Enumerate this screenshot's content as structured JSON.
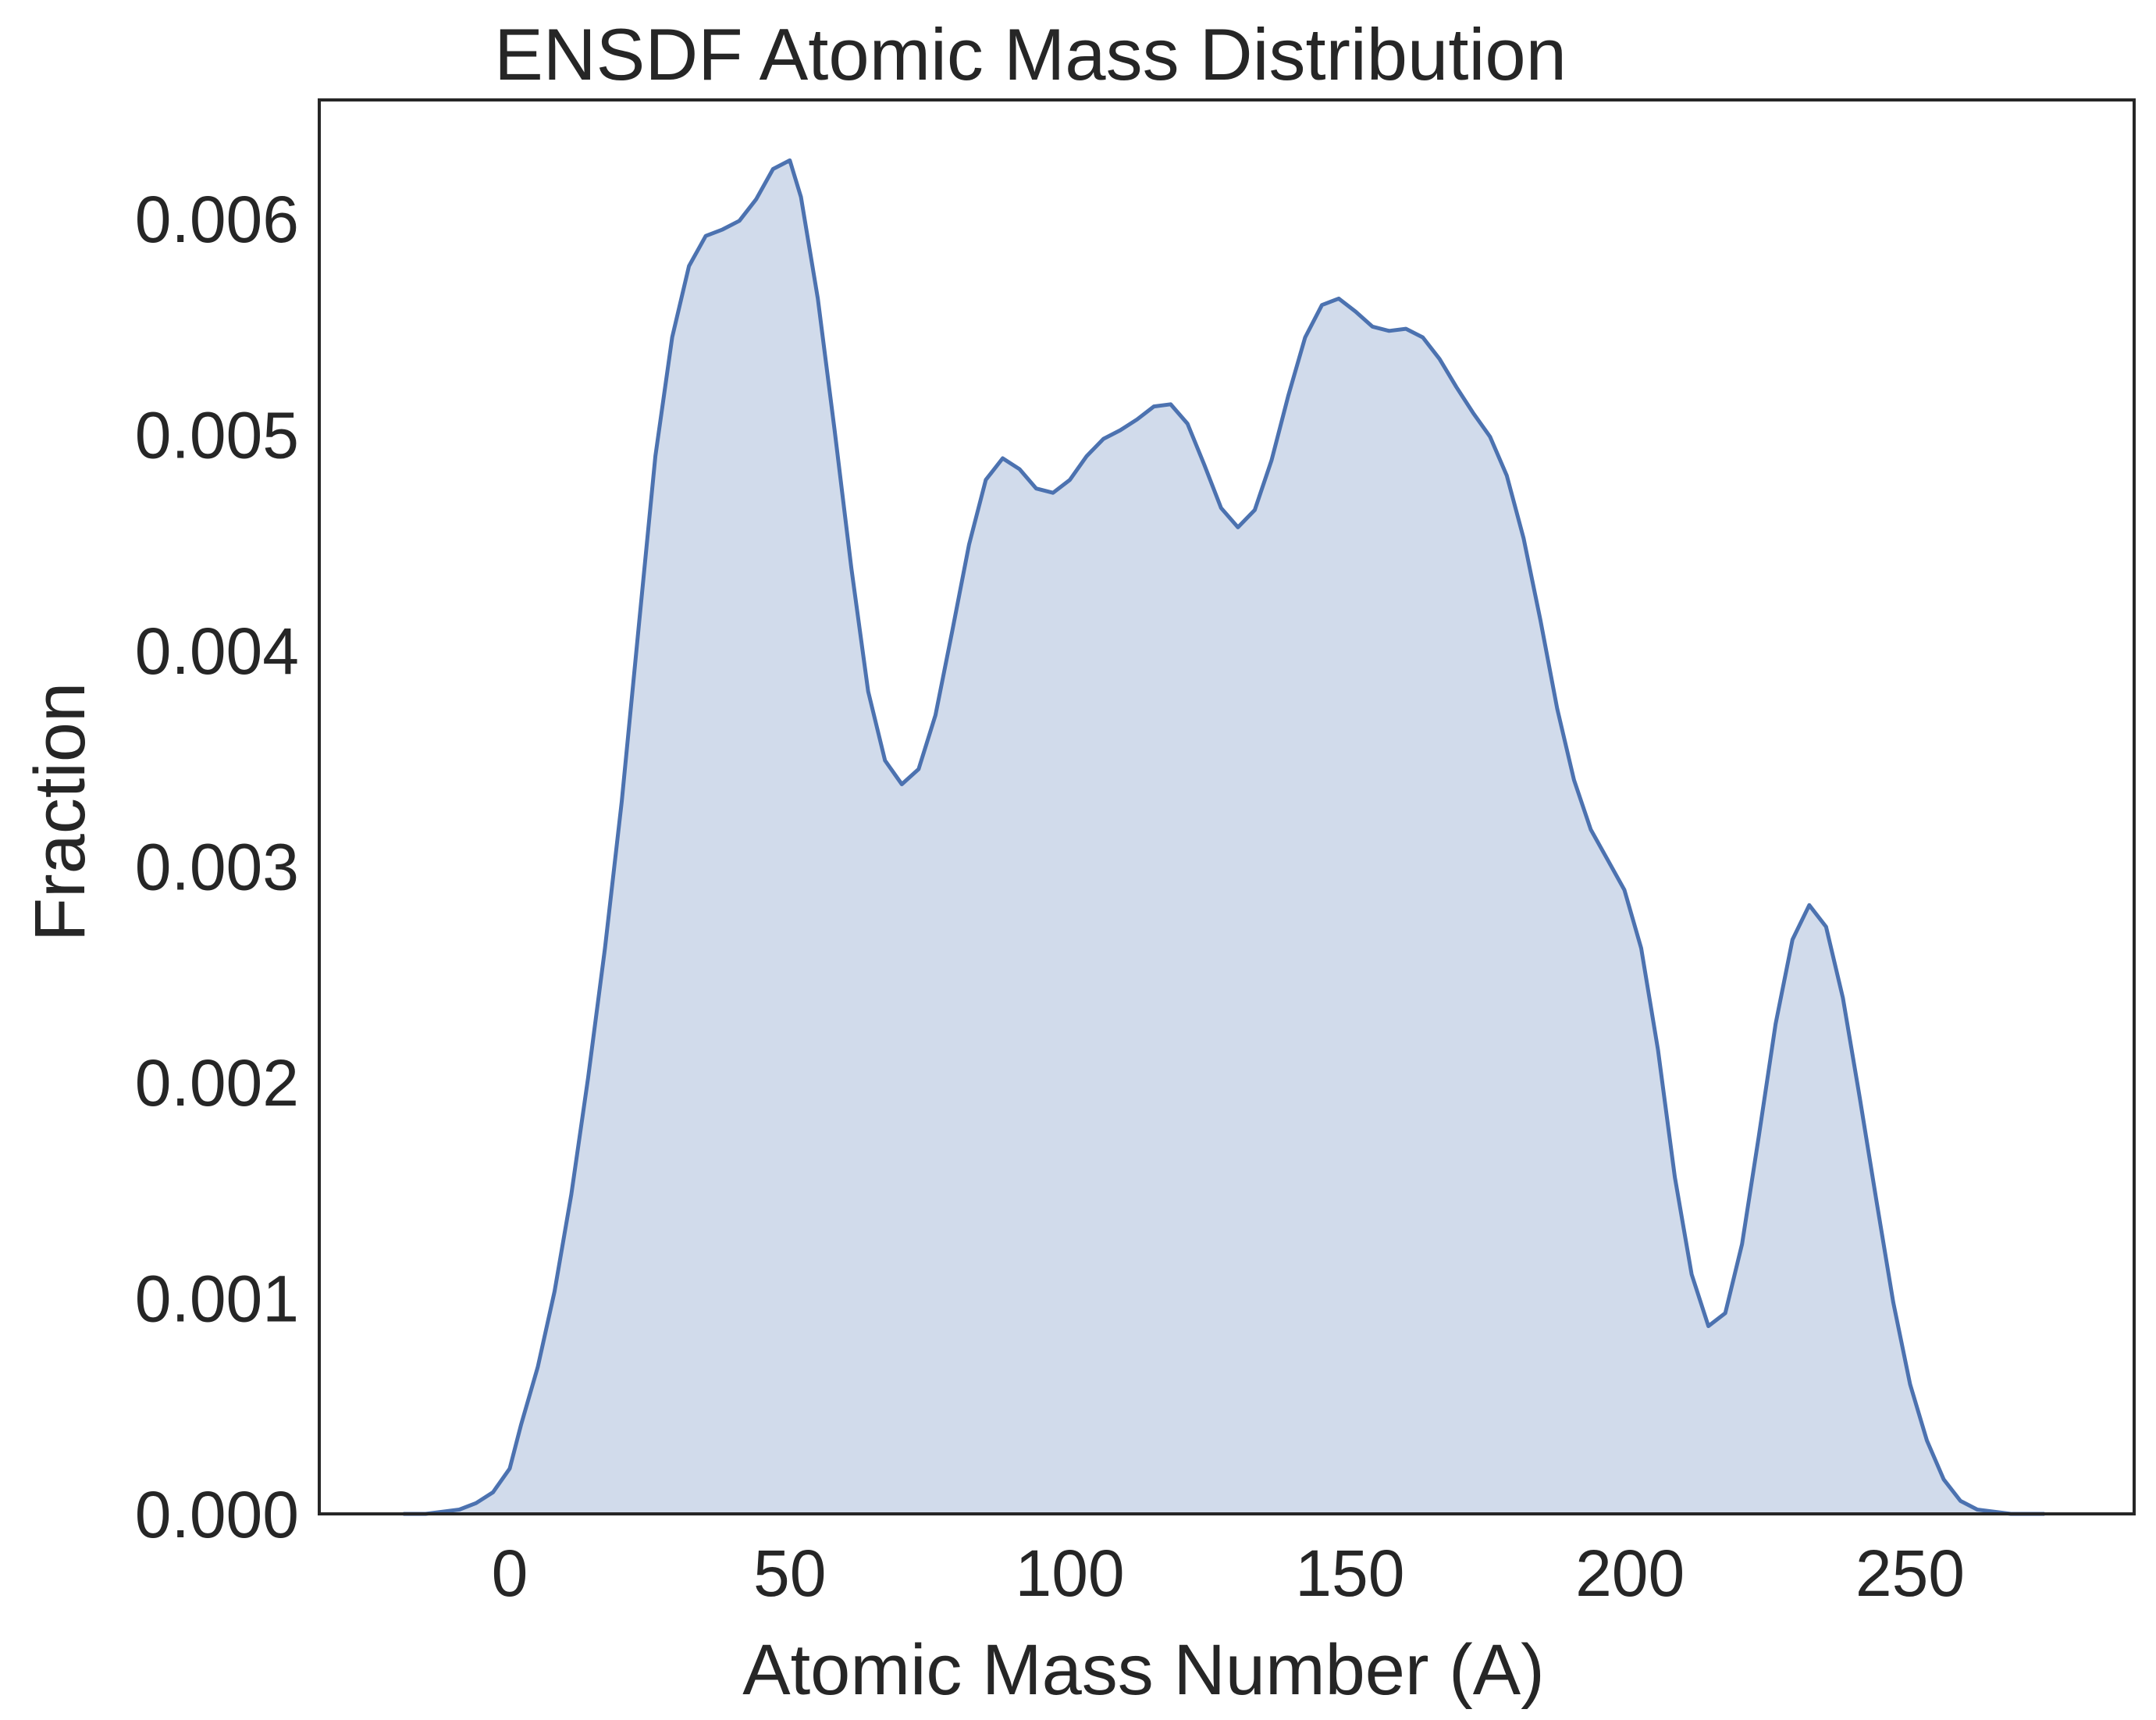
{
  "chart_data": {
    "type": "area",
    "title": "ENSDF Atomic Mass Distribution",
    "xlabel": "Atomic Mass Number (A)",
    "ylabel": "Fraction",
    "xlim": [
      -34,
      290
    ],
    "ylim": [
      0,
      0.00655
    ],
    "x_ticks": [
      0,
      50,
      100,
      150,
      200,
      250
    ],
    "x_tick_labels": [
      "0",
      "50",
      "100",
      "150",
      "200",
      "250"
    ],
    "y_ticks": [
      0,
      0.001,
      0.002,
      0.003,
      0.004,
      0.005,
      0.006
    ],
    "y_tick_labels": [
      "0.000",
      "0.001",
      "0.002",
      "0.003",
      "0.004",
      "0.005",
      "0.006"
    ],
    "grid": false,
    "legend": "none",
    "colors": {
      "line": "#4c72b0",
      "fill": "#d1dbeb",
      "axes": "#262626"
    },
    "series": [
      {
        "x": [
          -19,
          -15,
          -12,
          -9,
          -6,
          -3,
          0,
          2,
          5,
          8,
          11,
          14,
          17,
          20,
          23,
          26,
          29,
          32,
          35,
          38,
          41,
          44,
          47,
          50,
          52,
          55,
          58,
          61,
          64,
          67,
          70,
          73,
          76,
          79,
          82,
          85,
          88,
          91,
          94,
          97,
          100,
          103,
          106,
          109,
          112,
          115,
          118,
          121,
          124,
          127,
          130,
          133,
          136,
          139,
          142,
          145,
          148,
          151,
          154,
          157,
          160,
          163,
          166,
          169,
          172,
          175,
          178,
          181,
          184,
          187,
          190,
          193,
          196,
          199,
          202,
          205,
          208,
          211,
          214,
          217,
          220,
          223,
          226,
          229,
          232,
          235,
          238,
          241,
          244,
          247,
          250,
          253,
          256,
          259,
          262,
          265,
          268,
          271,
          274
        ],
        "y": [
          0,
          0,
          1e-05,
          2e-05,
          5e-05,
          0.0001,
          0.00021,
          0.00041,
          0.00068,
          0.00103,
          0.00148,
          0.00202,
          0.00262,
          0.0033,
          0.0041,
          0.0049,
          0.00545,
          0.00578,
          0.00592,
          0.00595,
          0.00599,
          0.00609,
          0.00623,
          0.00627,
          0.0061,
          0.00563,
          0.00502,
          0.00438,
          0.00381,
          0.00349,
          0.00338,
          0.00345,
          0.0037,
          0.00409,
          0.00449,
          0.00479,
          0.00489,
          0.00484,
          0.00475,
          0.00473,
          0.00479,
          0.0049,
          0.00498,
          0.00502,
          0.00507,
          0.00513,
          0.00514,
          0.00505,
          0.00486,
          0.00466,
          0.00457,
          0.00465,
          0.00488,
          0.00518,
          0.00545,
          0.0056,
          0.00563,
          0.00557,
          0.0055,
          0.00548,
          0.00549,
          0.00545,
          0.00535,
          0.00522,
          0.0051,
          0.00499,
          0.00481,
          0.00452,
          0.00414,
          0.00373,
          0.0034,
          0.00317,
          0.00303,
          0.00289,
          0.00262,
          0.00215,
          0.00156,
          0.00111,
          0.00087,
          0.00093,
          0.00125,
          0.00175,
          0.00227,
          0.00266,
          0.00282,
          0.00272,
          0.00239,
          0.00193,
          0.00145,
          0.00098,
          0.0006,
          0.00034,
          0.00016,
          6e-05,
          2e-05,
          1e-05,
          0,
          0,
          0
        ]
      }
    ]
  }
}
